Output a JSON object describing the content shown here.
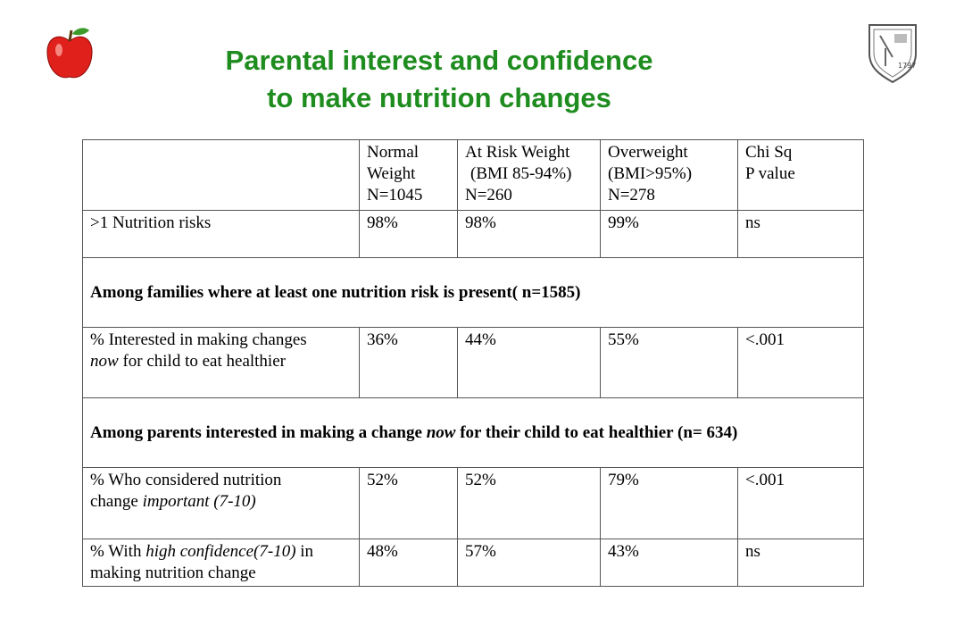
{
  "title": [
    "Parental interest and confidence",
    "to make nutrition changes"
  ],
  "logo_year": "1797",
  "table": {
    "header": [
      [
        "Normal",
        "Weight",
        "N=1045"
      ],
      [
        "At Risk Weight",
        "(BMI 85-94%)",
        "N=260"
      ],
      [
        "Overweight",
        "(BMI>95%)",
        "N=278"
      ],
      [
        "Chi Sq",
        "P value"
      ]
    ],
    "rows": [
      {
        "label": [
          ">1 Nutrition risks"
        ],
        "values": [
          "98%",
          "98%",
          "99%",
          "ns"
        ]
      },
      {
        "section": "Among families where at least one nutrition risk is present( n=1585)"
      },
      {
        "label": [
          "% Interested in making changes",
          "now",
          "for child to eat healthier"
        ],
        "values": [
          "36%",
          "44%",
          "55%",
          "<.001"
        ]
      },
      {
        "section_parts": [
          "Among parents interested in making a change",
          "now",
          "for their child to eat healthier (n= 634)"
        ]
      },
      {
        "label": [
          "% Who considered nutrition",
          "change",
          "important (7-10)"
        ],
        "values": [
          "52%",
          "52%",
          "79%",
          "<.001"
        ]
      },
      {
        "label": [
          "% With",
          "high confidence(7-10)",
          "in",
          "making nutrition change"
        ],
        "values": [
          "48%",
          "57%",
          "43%",
          "ns"
        ]
      }
    ]
  }
}
